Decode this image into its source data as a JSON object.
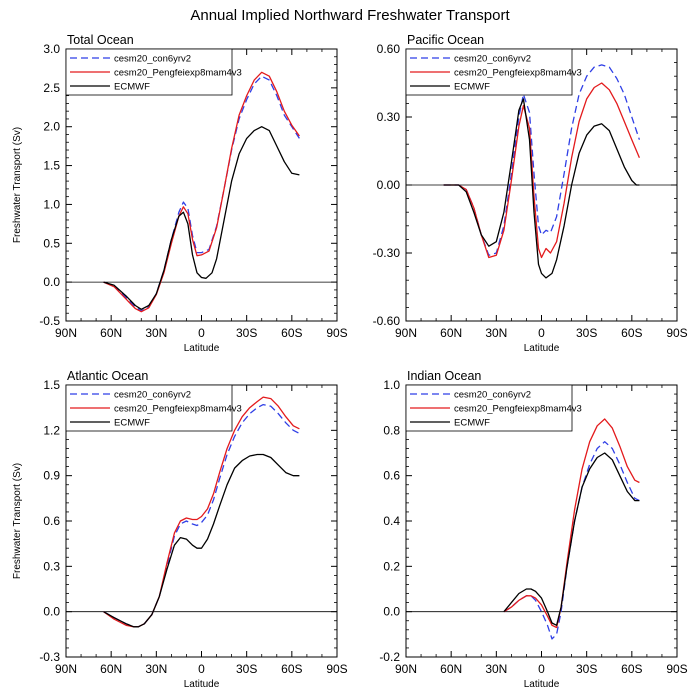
{
  "page_title": "Annual Implied Northward Freshwater Transport",
  "colors": {
    "series1": "#2f3fe6",
    "series2": "#e31a1c",
    "series3": "#000000",
    "zero_line": "#000000"
  },
  "chart_data": [
    {
      "type": "line",
      "title": "Total Ocean",
      "xlabel": "Latitude",
      "ylabel": "Freshwater Transport (Sv)",
      "xlim": [
        -90,
        90
      ],
      "ylim": [
        -0.5,
        3.0
      ],
      "x_ticks": [
        -90,
        -60,
        -30,
        0,
        30,
        60,
        90
      ],
      "x_tick_labels": [
        "90N",
        "60N",
        "30N",
        "0",
        "30S",
        "60S",
        "90S"
      ],
      "y_ticks": [
        -0.5,
        0,
        0.5,
        1.0,
        1.5,
        2.0,
        2.5,
        3.0
      ],
      "y_tick_labels": [
        "-0.5",
        "0.0",
        "0.5",
        "1.0",
        "1.5",
        "2.0",
        "2.5",
        "3.0"
      ],
      "legend": [
        "cesm20_con6yrv2",
        "cesm20_Pengfeiexp8mam4v3",
        "ECMWF"
      ],
      "series": [
        {
          "name": "cesm20_con6yrv2",
          "dash": "dashed",
          "x": [
            -65,
            -58,
            -50,
            -44,
            -40,
            -35,
            -30,
            -25,
            -20,
            -15,
            -12,
            -9,
            -6,
            -3,
            0,
            5,
            10,
            15,
            20,
            25,
            30,
            35,
            40,
            45,
            50,
            55,
            60,
            65
          ],
          "y": [
            0,
            -0.05,
            -0.2,
            -0.32,
            -0.37,
            -0.32,
            -0.15,
            0.15,
            0.55,
            0.9,
            1.03,
            0.95,
            0.6,
            0.38,
            0.38,
            0.42,
            0.72,
            1.2,
            1.7,
            2.1,
            2.35,
            2.55,
            2.65,
            2.6,
            2.4,
            2.15,
            2.0,
            1.85
          ]
        },
        {
          "name": "cesm20_Pengfeiexp8mam4v3",
          "dash": "solid",
          "x": [
            -65,
            -58,
            -50,
            -44,
            -40,
            -35,
            -30,
            -25,
            -20,
            -15,
            -12,
            -9,
            -6,
            -3,
            0,
            5,
            10,
            15,
            20,
            25,
            30,
            35,
            40,
            45,
            50,
            55,
            60,
            65
          ],
          "y": [
            0,
            -0.06,
            -0.22,
            -0.34,
            -0.38,
            -0.33,
            -0.16,
            0.12,
            0.5,
            0.85,
            0.97,
            0.88,
            0.55,
            0.34,
            0.35,
            0.4,
            0.7,
            1.2,
            1.72,
            2.15,
            2.4,
            2.6,
            2.7,
            2.65,
            2.45,
            2.2,
            2.02,
            1.88
          ]
        },
        {
          "name": "ECMWF",
          "dash": "solid",
          "x": [
            -65,
            -58,
            -50,
            -44,
            -40,
            -35,
            -30,
            -25,
            -20,
            -15,
            -12,
            -9,
            -6,
            -3,
            0,
            3,
            7,
            10,
            15,
            20,
            25,
            30,
            35,
            40,
            45,
            50,
            55,
            60,
            65
          ],
          "y": [
            0,
            -0.04,
            -0.18,
            -0.3,
            -0.35,
            -0.3,
            -0.15,
            0.15,
            0.55,
            0.85,
            0.9,
            0.75,
            0.35,
            0.12,
            0.06,
            0.05,
            0.12,
            0.3,
            0.8,
            1.3,
            1.65,
            1.85,
            1.95,
            2.0,
            1.95,
            1.75,
            1.55,
            1.4,
            1.38
          ]
        }
      ]
    },
    {
      "type": "line",
      "title": "Pacific Ocean",
      "xlabel": "Latitude",
      "ylabel": "",
      "xlim": [
        -90,
        90
      ],
      "ylim": [
        -0.6,
        0.6
      ],
      "x_ticks": [
        -90,
        -60,
        -30,
        0,
        30,
        60,
        90
      ],
      "x_tick_labels": [
        "90N",
        "60N",
        "30N",
        "0",
        "30S",
        "60S",
        "90S"
      ],
      "y_ticks": [
        -0.6,
        -0.3,
        0,
        0.3,
        0.6
      ],
      "y_tick_labels": [
        "-0.60",
        "-0.30",
        "0.00",
        "0.30",
        "0.60"
      ],
      "legend": [
        "cesm20_con6yrv2",
        "cesm20_Pengfeiexp8mam4v3",
        "ECMWF"
      ],
      "series": [
        {
          "name": "cesm20_con6yrv2",
          "dash": "dashed",
          "x": [
            -65,
            -55,
            -50,
            -45,
            -40,
            -35,
            -30,
            -25,
            -20,
            -15,
            -12,
            -8,
            -5,
            -2,
            0,
            3,
            6,
            10,
            15,
            20,
            25,
            30,
            35,
            40,
            45,
            50,
            55,
            60,
            65
          ],
          "y": [
            0,
            0,
            -0.02,
            -0.1,
            -0.22,
            -0.31,
            -0.3,
            -0.18,
            0.05,
            0.3,
            0.4,
            0.32,
            0.05,
            -0.18,
            -0.22,
            -0.2,
            -0.21,
            -0.14,
            0.05,
            0.25,
            0.4,
            0.48,
            0.52,
            0.53,
            0.52,
            0.47,
            0.4,
            0.3,
            0.2
          ]
        },
        {
          "name": "cesm20_Pengfeiexp8mam4v3",
          "dash": "solid",
          "x": [
            -65,
            -55,
            -50,
            -45,
            -40,
            -35,
            -30,
            -25,
            -20,
            -15,
            -12,
            -8,
            -5,
            -2,
            0,
            3,
            6,
            10,
            15,
            20,
            25,
            30,
            35,
            40,
            45,
            50,
            55,
            60,
            65
          ],
          "y": [
            0,
            0,
            -0.02,
            -0.1,
            -0.22,
            -0.32,
            -0.31,
            -0.2,
            0.02,
            0.26,
            0.35,
            0.25,
            -0.05,
            -0.28,
            -0.32,
            -0.28,
            -0.3,
            -0.25,
            -0.08,
            0.12,
            0.28,
            0.38,
            0.43,
            0.45,
            0.42,
            0.36,
            0.28,
            0.2,
            0.12
          ]
        },
        {
          "name": "ECMWF",
          "dash": "solid",
          "x": [
            -65,
            -55,
            -50,
            -45,
            -40,
            -35,
            -30,
            -25,
            -20,
            -15,
            -12,
            -8,
            -5,
            -2,
            0,
            3,
            7,
            10,
            15,
            20,
            25,
            30,
            35,
            40,
            45,
            50,
            55,
            60,
            63,
            65
          ],
          "y": [
            0,
            0,
            -0.03,
            -0.12,
            -0.22,
            -0.27,
            -0.25,
            -0.12,
            0.1,
            0.33,
            0.38,
            0.2,
            -0.12,
            -0.35,
            -0.39,
            -0.41,
            -0.39,
            -0.33,
            -0.18,
            0.0,
            0.14,
            0.22,
            0.26,
            0.27,
            0.24,
            0.16,
            0.08,
            0.02,
            0.0,
            0.0
          ]
        }
      ]
    },
    {
      "type": "line",
      "title": "Atlantic Ocean",
      "xlabel": "Latitude",
      "ylabel": "Freshwater Transport (Sv)",
      "xlim": [
        -90,
        90
      ],
      "ylim": [
        -0.3,
        1.5
      ],
      "x_ticks": [
        -90,
        -60,
        -30,
        0,
        30,
        60,
        90
      ],
      "x_tick_labels": [
        "90N",
        "60N",
        "30N",
        "0",
        "30S",
        "60S",
        "90S"
      ],
      "y_ticks": [
        -0.3,
        0,
        0.3,
        0.6,
        0.9,
        1.2,
        1.5
      ],
      "y_tick_labels": [
        "-0.3",
        "0.0",
        "0.3",
        "0.6",
        "0.9",
        "1.2",
        "1.5"
      ],
      "legend": [
        "cesm20_con6yrv2",
        "cesm20_Pengfeiexp8mam4v3",
        "ECMWF"
      ],
      "series": [
        {
          "name": "cesm20_con6yrv2",
          "dash": "dashed",
          "x": [
            -65,
            -58,
            -50,
            -45,
            -42,
            -38,
            -33,
            -28,
            -23,
            -18,
            -14,
            -10,
            -6,
            -3,
            0,
            4,
            8,
            12,
            17,
            22,
            27,
            32,
            37,
            41,
            46,
            51,
            56,
            61,
            65
          ],
          "y": [
            0,
            -0.04,
            -0.08,
            -0.1,
            -0.1,
            -0.08,
            -0.02,
            0.1,
            0.3,
            0.5,
            0.58,
            0.6,
            0.58,
            0.57,
            0.59,
            0.64,
            0.74,
            0.88,
            1.04,
            1.16,
            1.25,
            1.31,
            1.35,
            1.37,
            1.36,
            1.31,
            1.25,
            1.2,
            1.18
          ]
        },
        {
          "name": "cesm20_Pengfeiexp8mam4v3",
          "dash": "solid",
          "x": [
            -65,
            -58,
            -50,
            -45,
            -42,
            -38,
            -33,
            -28,
            -23,
            -18,
            -14,
            -10,
            -6,
            -3,
            0,
            4,
            8,
            12,
            17,
            22,
            27,
            32,
            37,
            41,
            46,
            51,
            56,
            61,
            65
          ],
          "y": [
            0,
            -0.05,
            -0.09,
            -0.1,
            -0.1,
            -0.08,
            -0.02,
            0.1,
            0.32,
            0.52,
            0.6,
            0.62,
            0.61,
            0.61,
            0.63,
            0.68,
            0.78,
            0.92,
            1.08,
            1.2,
            1.29,
            1.35,
            1.39,
            1.42,
            1.41,
            1.36,
            1.29,
            1.23,
            1.21
          ]
        },
        {
          "name": "ECMWF",
          "dash": "solid",
          "x": [
            -65,
            -58,
            -50,
            -45,
            -42,
            -38,
            -33,
            -28,
            -23,
            -18,
            -14,
            -10,
            -6,
            -3,
            0,
            4,
            8,
            12,
            17,
            22,
            27,
            32,
            37,
            41,
            46,
            51,
            56,
            61,
            65
          ],
          "y": [
            0,
            -0.04,
            -0.08,
            -0.1,
            -0.1,
            -0.08,
            -0.02,
            0.1,
            0.28,
            0.44,
            0.49,
            0.48,
            0.44,
            0.42,
            0.42,
            0.48,
            0.58,
            0.7,
            0.84,
            0.95,
            1.0,
            1.03,
            1.04,
            1.04,
            1.02,
            0.97,
            0.92,
            0.9,
            0.9
          ]
        }
      ]
    },
    {
      "type": "line",
      "title": "Indian Ocean",
      "xlabel": "Latitude",
      "ylabel": "",
      "xlim": [
        -90,
        90
      ],
      "ylim": [
        -0.2,
        1.0
      ],
      "x_ticks": [
        -90,
        -60,
        -30,
        0,
        30,
        60,
        90
      ],
      "x_tick_labels": [
        "90N",
        "60N",
        "30N",
        "0",
        "30S",
        "60S",
        "90S"
      ],
      "y_ticks": [
        -0.2,
        0,
        0.2,
        0.4,
        0.6,
        0.8,
        1.0
      ],
      "y_tick_labels": [
        "-0.2",
        "0.0",
        "0.2",
        "0.4",
        "0.6",
        "0.8",
        "1.0"
      ],
      "legend": [
        "cesm20_con6yrv2",
        "cesm20_Pengfeiexp8mam4v3",
        "ECMWF"
      ],
      "series": [
        {
          "name": "cesm20_con6yrv2",
          "dash": "dashed",
          "x": [
            -25,
            -20,
            -15,
            -10,
            -7,
            -4,
            0,
            4,
            7,
            10,
            13,
            17,
            22,
            27,
            32,
            37,
            42,
            47,
            52,
            57,
            62,
            65
          ],
          "y": [
            0,
            0.02,
            0.05,
            0.07,
            0.07,
            0.05,
            0.0,
            -0.06,
            -0.12,
            -0.1,
            0.0,
            0.2,
            0.4,
            0.55,
            0.65,
            0.72,
            0.75,
            0.72,
            0.65,
            0.57,
            0.5,
            0.49
          ]
        },
        {
          "name": "cesm20_Pengfeiexp8mam4v3",
          "dash": "solid",
          "x": [
            -25,
            -20,
            -15,
            -10,
            -7,
            -4,
            0,
            4,
            7,
            10,
            13,
            17,
            22,
            27,
            32,
            37,
            42,
            47,
            52,
            57,
            62,
            65
          ],
          "y": [
            0,
            0.02,
            0.05,
            0.07,
            0.07,
            0.06,
            0.03,
            -0.02,
            -0.06,
            -0.07,
            0.02,
            0.22,
            0.45,
            0.63,
            0.75,
            0.82,
            0.85,
            0.81,
            0.73,
            0.64,
            0.58,
            0.57
          ]
        },
        {
          "name": "ECMWF",
          "dash": "solid",
          "x": [
            -25,
            -20,
            -15,
            -10,
            -7,
            -4,
            0,
            4,
            7,
            10,
            13,
            17,
            22,
            27,
            32,
            37,
            42,
            47,
            52,
            57,
            62,
            65
          ],
          "y": [
            0,
            0.04,
            0.08,
            0.1,
            0.1,
            0.09,
            0.06,
            0.0,
            -0.05,
            -0.06,
            0.02,
            0.2,
            0.4,
            0.55,
            0.63,
            0.68,
            0.7,
            0.67,
            0.6,
            0.53,
            0.49,
            0.49
          ]
        }
      ]
    }
  ]
}
